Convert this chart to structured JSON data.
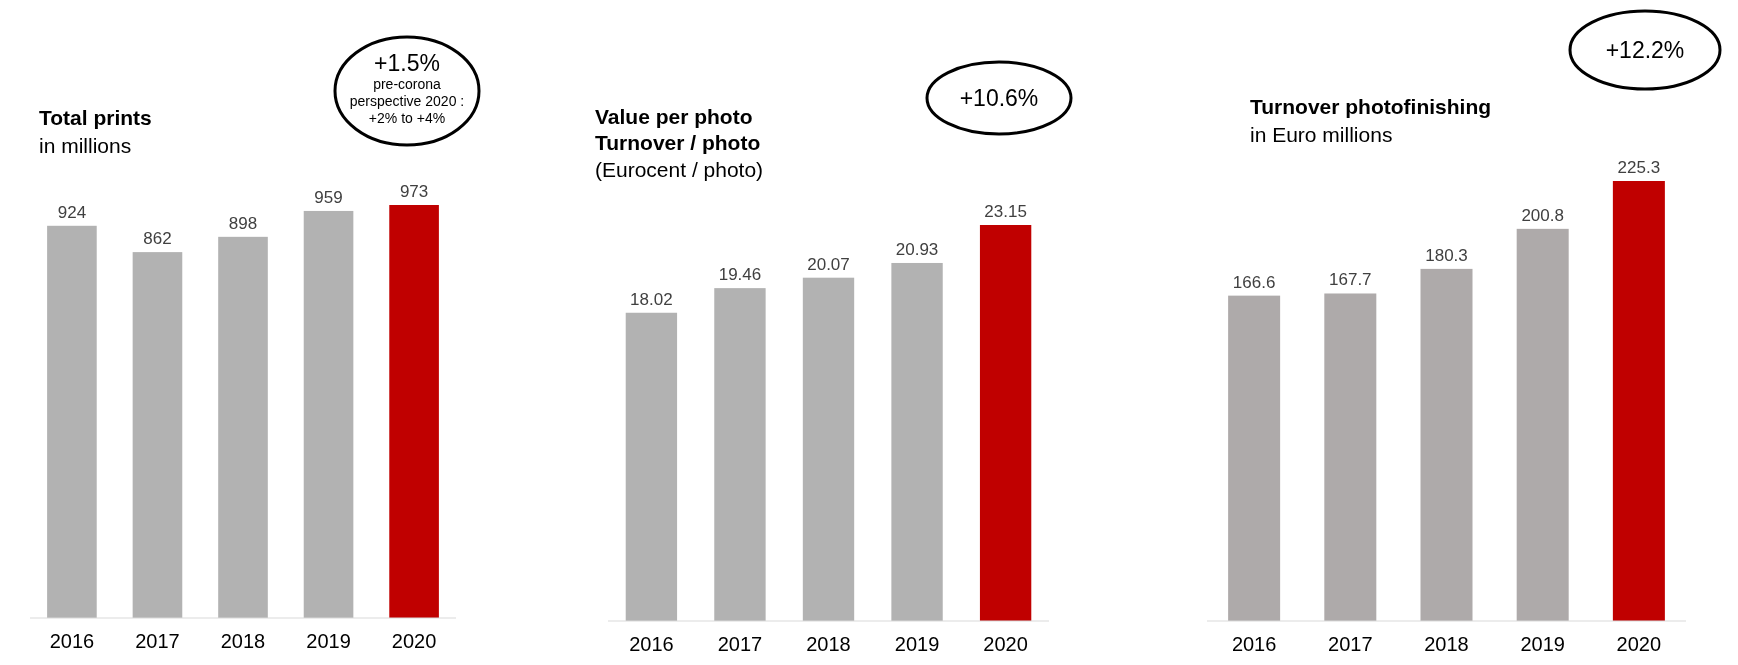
{
  "chart_data": [
    {
      "type": "bar",
      "title": "Total prints",
      "subtitle": "in millions",
      "categories": [
        "2016",
        "2017",
        "2018",
        "2019",
        "2020"
      ],
      "values": [
        924,
        862,
        898,
        959,
        973
      ],
      "colors": [
        "#b2b2b2",
        "#b2b2b2",
        "#b2b2b2",
        "#b2b2b2",
        "#c00000"
      ],
      "data_labels": true,
      "annotations": [
        "+1.5%",
        "pre-corona\nperspective 2020 :\n+2% to +4%"
      ]
    },
    {
      "type": "bar",
      "title": "Value per photo\nTurnover / photo",
      "subtitle": "(Eurocent / photo)",
      "categories": [
        "2016",
        "2017",
        "2018",
        "2019",
        "2020"
      ],
      "values": [
        18.02,
        19.46,
        20.07,
        20.93,
        23.15
      ],
      "colors": [
        "#b2b2b2",
        "#b2b2b2",
        "#b2b2b2",
        "#b2b2b2",
        "#c00000"
      ],
      "data_labels": true,
      "annotations": [
        "+10.6%"
      ]
    },
    {
      "type": "bar",
      "title": "Turnover photofinishing",
      "subtitle": "in Euro millions",
      "categories": [
        "2016",
        "2017",
        "2018",
        "2019",
        "2020"
      ],
      "values": [
        166.6,
        167.7,
        180.3,
        200.8,
        225.3
      ],
      "colors": [
        "#aeaaaa",
        "#aeaaaa",
        "#aeaaaa",
        "#aeaaaa",
        "#c00000"
      ],
      "data_labels": true,
      "annotations": [
        "+12.2%"
      ]
    }
  ]
}
